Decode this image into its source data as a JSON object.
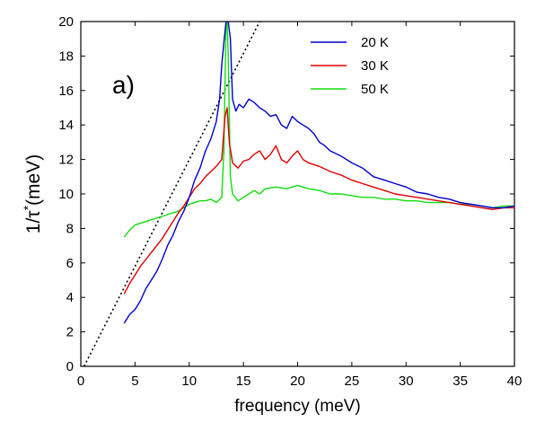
{
  "chart_data": {
    "type": "line",
    "panel_label": "a)",
    "xlabel": "frequency (meV)",
    "ylabel_main": "1/τ",
    "ylabel_sup": "*",
    "ylabel_unit": "(meV)",
    "xlim": [
      0,
      40
    ],
    "ylim": [
      0,
      20
    ],
    "xticks": [
      0,
      5,
      10,
      15,
      20,
      25,
      30,
      35,
      40
    ],
    "yticks": [
      0,
      2,
      4,
      6,
      8,
      10,
      12,
      14,
      16,
      18,
      20
    ],
    "grid": false,
    "legend_position": "top-right",
    "series": [
      {
        "name": "20 K",
        "color": "#0000cc",
        "x": [
          4.0,
          4.5,
          5.0,
          5.5,
          6.0,
          6.5,
          7.0,
          7.5,
          8.0,
          8.5,
          9.0,
          9.5,
          10.0,
          10.5,
          11.0,
          11.5,
          12.0,
          12.5,
          12.8,
          13.0,
          13.2,
          13.4,
          13.6,
          13.8,
          14.0,
          14.3,
          14.6,
          15.0,
          15.5,
          16.0,
          16.5,
          17.0,
          17.5,
          18.0,
          18.5,
          19.0,
          19.5,
          20.0,
          20.5,
          21.0,
          21.5,
          22.0,
          22.5,
          23.0,
          24.0,
          25.0,
          26.0,
          27.0,
          28.0,
          29.0,
          30.0,
          31.0,
          32.0,
          33.0,
          34.0,
          35.0,
          36.0,
          37.0,
          38.0,
          39.0,
          40.0
        ],
        "y": [
          2.5,
          3.0,
          3.3,
          3.8,
          4.5,
          5.0,
          5.5,
          6.2,
          7.0,
          7.6,
          8.4,
          9.0,
          9.8,
          10.8,
          11.5,
          12.5,
          13.2,
          14.2,
          15.5,
          17.5,
          18.8,
          20.0,
          20.0,
          19.0,
          15.5,
          14.8,
          15.2,
          15.0,
          15.5,
          15.3,
          15.0,
          14.8,
          14.5,
          14.6,
          14.0,
          13.8,
          14.5,
          14.2,
          14.0,
          13.8,
          13.5,
          13.0,
          12.8,
          12.5,
          12.2,
          11.8,
          11.5,
          11.0,
          10.8,
          10.6,
          10.4,
          10.1,
          10.0,
          9.8,
          9.7,
          9.5,
          9.4,
          9.3,
          9.2,
          9.2,
          9.3
        ]
      },
      {
        "name": "30 K",
        "color": "#dd0000",
        "x": [
          4.0,
          4.5,
          5.0,
          5.5,
          6.0,
          6.5,
          7.0,
          7.5,
          8.0,
          8.5,
          9.0,
          9.5,
          10.0,
          10.5,
          11.0,
          11.5,
          12.0,
          12.5,
          13.0,
          13.3,
          13.5,
          13.7,
          14.0,
          14.5,
          15.0,
          15.5,
          16.0,
          16.5,
          17.0,
          17.5,
          18.0,
          18.5,
          19.0,
          19.5,
          20.0,
          20.5,
          21.0,
          22.0,
          23.0,
          24.0,
          25.0,
          26.0,
          27.0,
          28.0,
          29.0,
          30.0,
          31.0,
          32.0,
          33.0,
          34.0,
          35.0,
          36.0,
          37.0,
          38.0,
          39.0,
          40.0
        ],
        "y": [
          4.2,
          4.8,
          5.3,
          5.8,
          6.2,
          6.6,
          7.0,
          7.4,
          7.9,
          8.4,
          8.9,
          9.3,
          9.8,
          10.3,
          10.6,
          11.0,
          11.3,
          11.6,
          12.0,
          14.5,
          15.0,
          13.0,
          11.8,
          11.5,
          11.9,
          12.0,
          12.3,
          12.5,
          12.0,
          12.3,
          12.8,
          12.0,
          11.8,
          12.2,
          12.5,
          12.0,
          11.8,
          11.6,
          11.3,
          11.1,
          10.8,
          10.6,
          10.4,
          10.2,
          10.0,
          9.9,
          9.8,
          9.7,
          9.6,
          9.5,
          9.4,
          9.3,
          9.2,
          9.1,
          9.2,
          9.2
        ]
      },
      {
        "name": "50 K",
        "color": "#11dd11",
        "x": [
          4.0,
          4.5,
          5.0,
          5.5,
          6.0,
          6.5,
          7.0,
          7.5,
          8.0,
          8.5,
          9.0,
          9.5,
          10.0,
          10.5,
          11.0,
          11.5,
          12.0,
          12.5,
          13.0,
          13.2,
          13.4,
          13.5,
          13.6,
          13.8,
          14.0,
          14.5,
          15.0,
          15.5,
          16.0,
          16.5,
          17.0,
          18.0,
          19.0,
          20.0,
          21.0,
          22.0,
          23.0,
          24.0,
          25.0,
          26.0,
          27.0,
          28.0,
          29.0,
          30.0,
          31.0,
          32.0,
          33.0,
          34.0,
          35.0,
          36.0,
          37.0,
          38.0,
          39.0,
          40.0
        ],
        "y": [
          7.5,
          7.9,
          8.2,
          8.3,
          8.4,
          8.5,
          8.6,
          8.7,
          8.8,
          8.9,
          9.0,
          9.2,
          9.4,
          9.5,
          9.6,
          9.6,
          9.7,
          9.5,
          9.8,
          12.5,
          20.0,
          20.0,
          18.0,
          11.0,
          10.0,
          9.6,
          9.8,
          10.0,
          10.2,
          10.0,
          10.3,
          10.4,
          10.3,
          10.5,
          10.3,
          10.2,
          10.0,
          10.0,
          9.9,
          9.8,
          9.8,
          9.7,
          9.7,
          9.6,
          9.6,
          9.5,
          9.5,
          9.5,
          9.4,
          9.4,
          9.3,
          9.2,
          9.3,
          9.3
        ]
      }
    ],
    "reference_line": {
      "style": "dotted",
      "color": "#000000",
      "x": [
        0.3,
        16.5
      ],
      "y": [
        0.0,
        20.0
      ]
    }
  }
}
